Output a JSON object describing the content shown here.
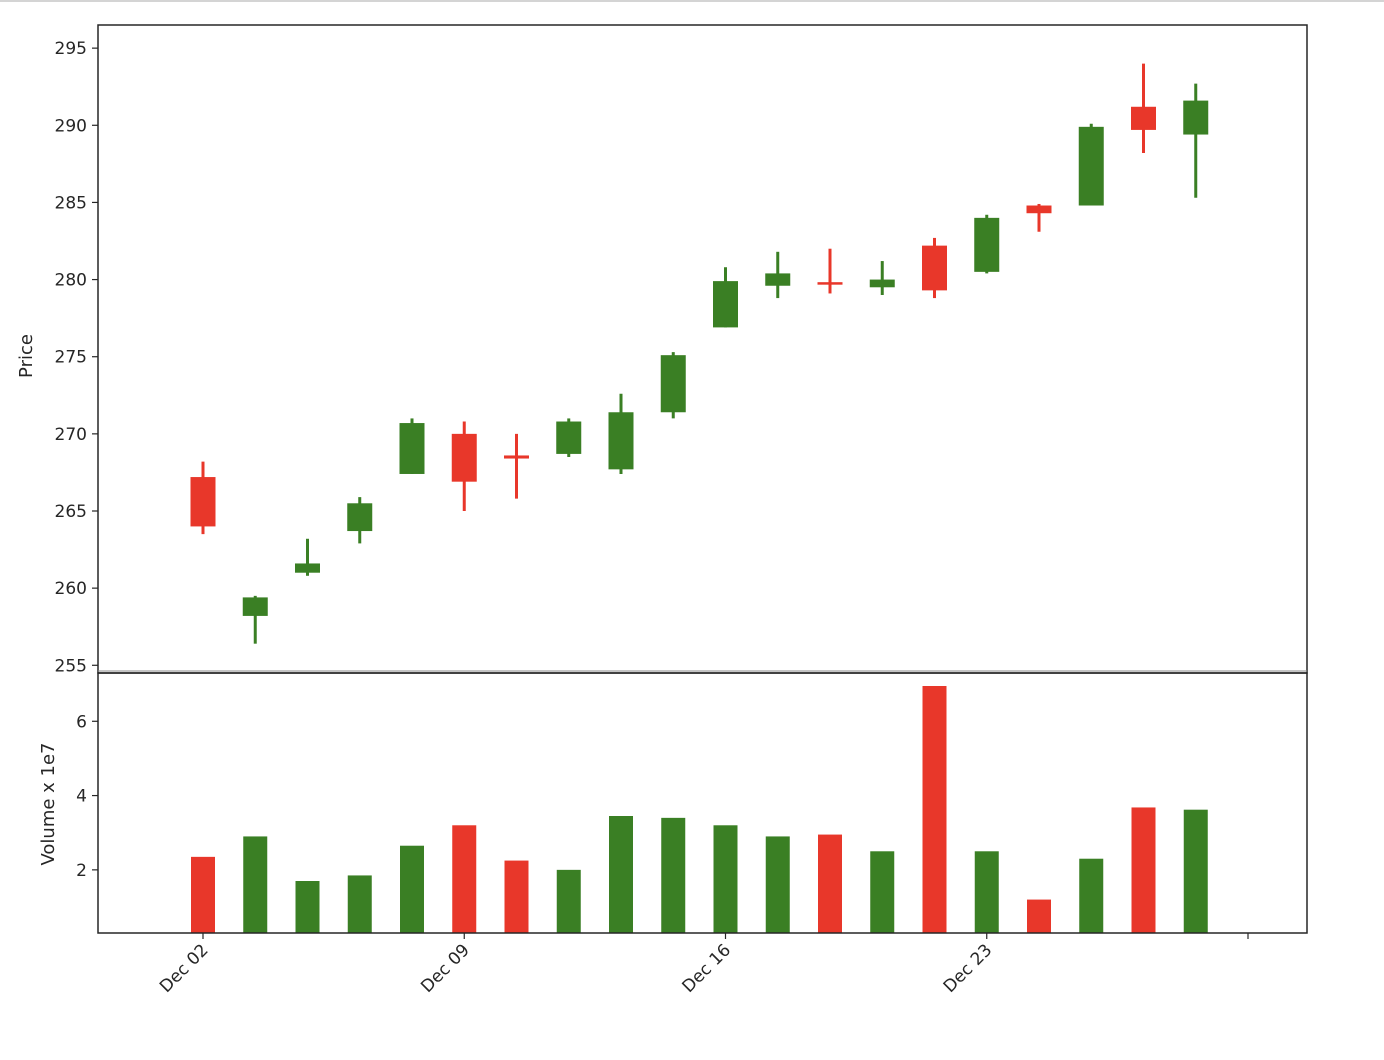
{
  "chart_data": [
    {
      "type": "candlestick",
      "ylabel": "Price",
      "ylim": [
        254.5,
        296.5
      ],
      "yticks": [
        255,
        260,
        265,
        270,
        275,
        280,
        285,
        290,
        295
      ],
      "colors": {
        "up": "#3a7f24",
        "down": "#e8372a"
      },
      "candles": [
        {
          "open": 267.2,
          "high": 268.2,
          "low": 263.5,
          "close": 264.0
        },
        {
          "open": 258.2,
          "high": 259.5,
          "low": 256.4,
          "close": 259.4
        },
        {
          "open": 261.0,
          "high": 263.2,
          "low": 260.8,
          "close": 261.6
        },
        {
          "open": 263.7,
          "high": 265.9,
          "low": 262.9,
          "close": 265.5
        },
        {
          "open": 267.4,
          "high": 271.0,
          "low": 267.4,
          "close": 270.7
        },
        {
          "open": 270.0,
          "high": 270.8,
          "low": 265.0,
          "close": 266.9
        },
        {
          "open": 268.6,
          "high": 270.0,
          "low": 265.8,
          "close": 268.4
        },
        {
          "open": 268.7,
          "high": 271.0,
          "low": 268.5,
          "close": 270.8
        },
        {
          "open": 267.7,
          "high": 272.6,
          "low": 267.4,
          "close": 271.4
        },
        {
          "open": 271.4,
          "high": 275.3,
          "low": 271.0,
          "close": 275.1
        },
        {
          "open": 276.9,
          "high": 280.8,
          "low": 276.9,
          "close": 279.9
        },
        {
          "open": 279.6,
          "high": 281.8,
          "low": 278.8,
          "close": 280.4
        },
        {
          "open": 279.8,
          "high": 282.0,
          "low": 279.1,
          "close": 279.7
        },
        {
          "open": 279.5,
          "high": 281.2,
          "low": 279.0,
          "close": 280.0
        },
        {
          "open": 282.2,
          "high": 282.7,
          "low": 278.8,
          "close": 279.3
        },
        {
          "open": 280.5,
          "high": 284.2,
          "low": 280.4,
          "close": 284.0
        },
        {
          "open": 284.8,
          "high": 284.9,
          "low": 283.1,
          "close": 284.3
        },
        {
          "open": 284.8,
          "high": 290.1,
          "low": 284.8,
          "close": 289.9
        },
        {
          "open": 291.2,
          "high": 294.0,
          "low": 288.2,
          "close": 289.7
        },
        {
          "open": 289.4,
          "high": 292.7,
          "low": 285.3,
          "close": 291.6
        }
      ]
    },
    {
      "type": "bar",
      "ylabel": "Volume x 1e7",
      "ylim": [
        0.3,
        7.3
      ],
      "yticks": [
        2,
        4,
        6
      ],
      "values": [
        2.35,
        2.9,
        1.7,
        1.85,
        2.65,
        3.2,
        2.25,
        2.0,
        3.45,
        3.4,
        3.2,
        2.9,
        2.95,
        2.5,
        6.95,
        2.5,
        1.2,
        2.3,
        3.68,
        3.62
      ],
      "directions": [
        "down",
        "up",
        "up",
        "up",
        "up",
        "down",
        "down",
        "up",
        "up",
        "up",
        "up",
        "up",
        "down",
        "up",
        "down",
        "up",
        "down",
        "up",
        "down",
        "up"
      ]
    }
  ],
  "x_axis": {
    "ticks": [
      {
        "label": "Dec 02",
        "index": 0
      },
      {
        "label": "Dec 09",
        "index": 5
      },
      {
        "label": "Dec 16",
        "index": 10
      },
      {
        "label": "Dec 23",
        "index": 15
      },
      {
        "label": "",
        "index": 20
      }
    ]
  }
}
